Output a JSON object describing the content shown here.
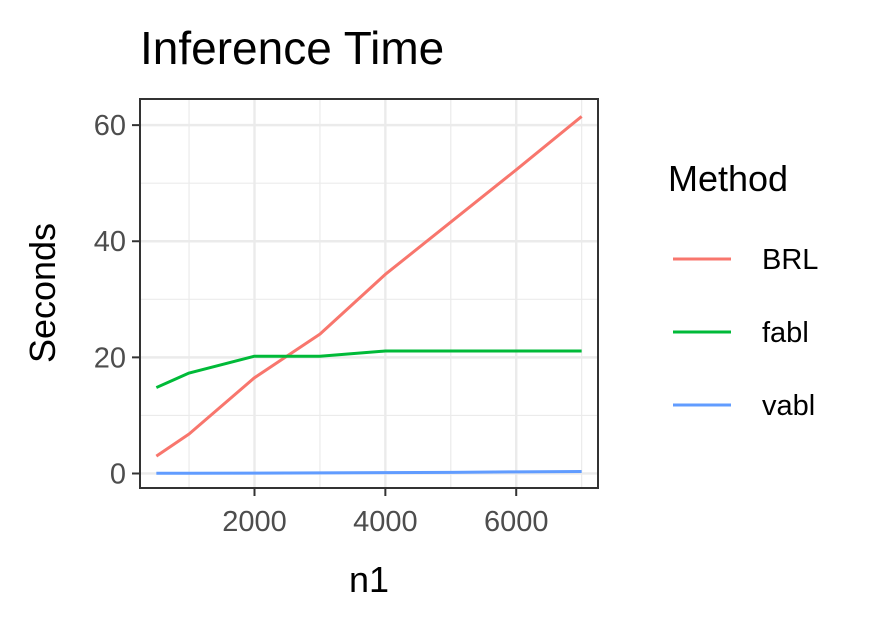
{
  "chart_data": {
    "type": "line",
    "title": "Inference Time",
    "xlabel": "n1",
    "ylabel": "Seconds",
    "xlim": [
      250,
      7250
    ],
    "ylim": [
      -2.5,
      64.5
    ],
    "x_ticks": [
      2000,
      4000,
      6000
    ],
    "y_ticks": [
      0,
      20,
      40,
      60
    ],
    "grid": true,
    "legend": {
      "title": "Method",
      "position": "right"
    },
    "x": [
      500,
      1000,
      2000,
      3000,
      4000,
      5000,
      6000,
      7000
    ],
    "series": [
      {
        "name": "BRL",
        "color": "#F8766D",
        "values": [
          3.0,
          6.8,
          16.5,
          24.0,
          34.3,
          43.3,
          52.3,
          61.5
        ]
      },
      {
        "name": "fabl",
        "color": "#00BA38",
        "values": [
          14.8,
          17.3,
          20.2,
          20.2,
          21.1,
          21.1,
          21.1,
          21.1
        ]
      },
      {
        "name": "vabl",
        "color": "#619CFF",
        "values": [
          0.05,
          0.05,
          0.07,
          0.1,
          0.15,
          0.2,
          0.28,
          0.35
        ]
      }
    ]
  }
}
